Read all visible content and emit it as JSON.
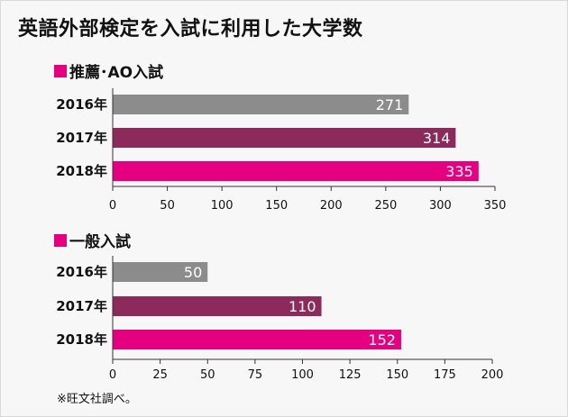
{
  "title": "英語外部検定を入試に利用した大学数",
  "footnote": "※旺文社調べ。",
  "colors": {
    "marker": "#e4007f",
    "year_2016": "#8c8c8c",
    "year_2017": "#8b2a5b",
    "year_2018": "#e4007f",
    "background": "#f7f7f7"
  },
  "chart_data": [
    {
      "type": "bar",
      "orientation": "horizontal",
      "title": "推薦･AO入試",
      "categories": [
        "2016年",
        "2017年",
        "2018年"
      ],
      "values": [
        271,
        314,
        335
      ],
      "xlim": [
        0,
        350
      ],
      "xticks": [
        0,
        50,
        100,
        150,
        200,
        250,
        300,
        350
      ],
      "xlabel": "",
      "ylabel": "",
      "grid": false
    },
    {
      "type": "bar",
      "orientation": "horizontal",
      "title": "一般入試",
      "categories": [
        "2016年",
        "2017年",
        "2018年"
      ],
      "values": [
        50,
        110,
        152
      ],
      "xlim": [
        0,
        200
      ],
      "xticks": [
        0,
        25,
        50,
        75,
        100,
        125,
        150,
        175,
        200
      ],
      "xlabel": "",
      "ylabel": "",
      "grid": false
    }
  ]
}
